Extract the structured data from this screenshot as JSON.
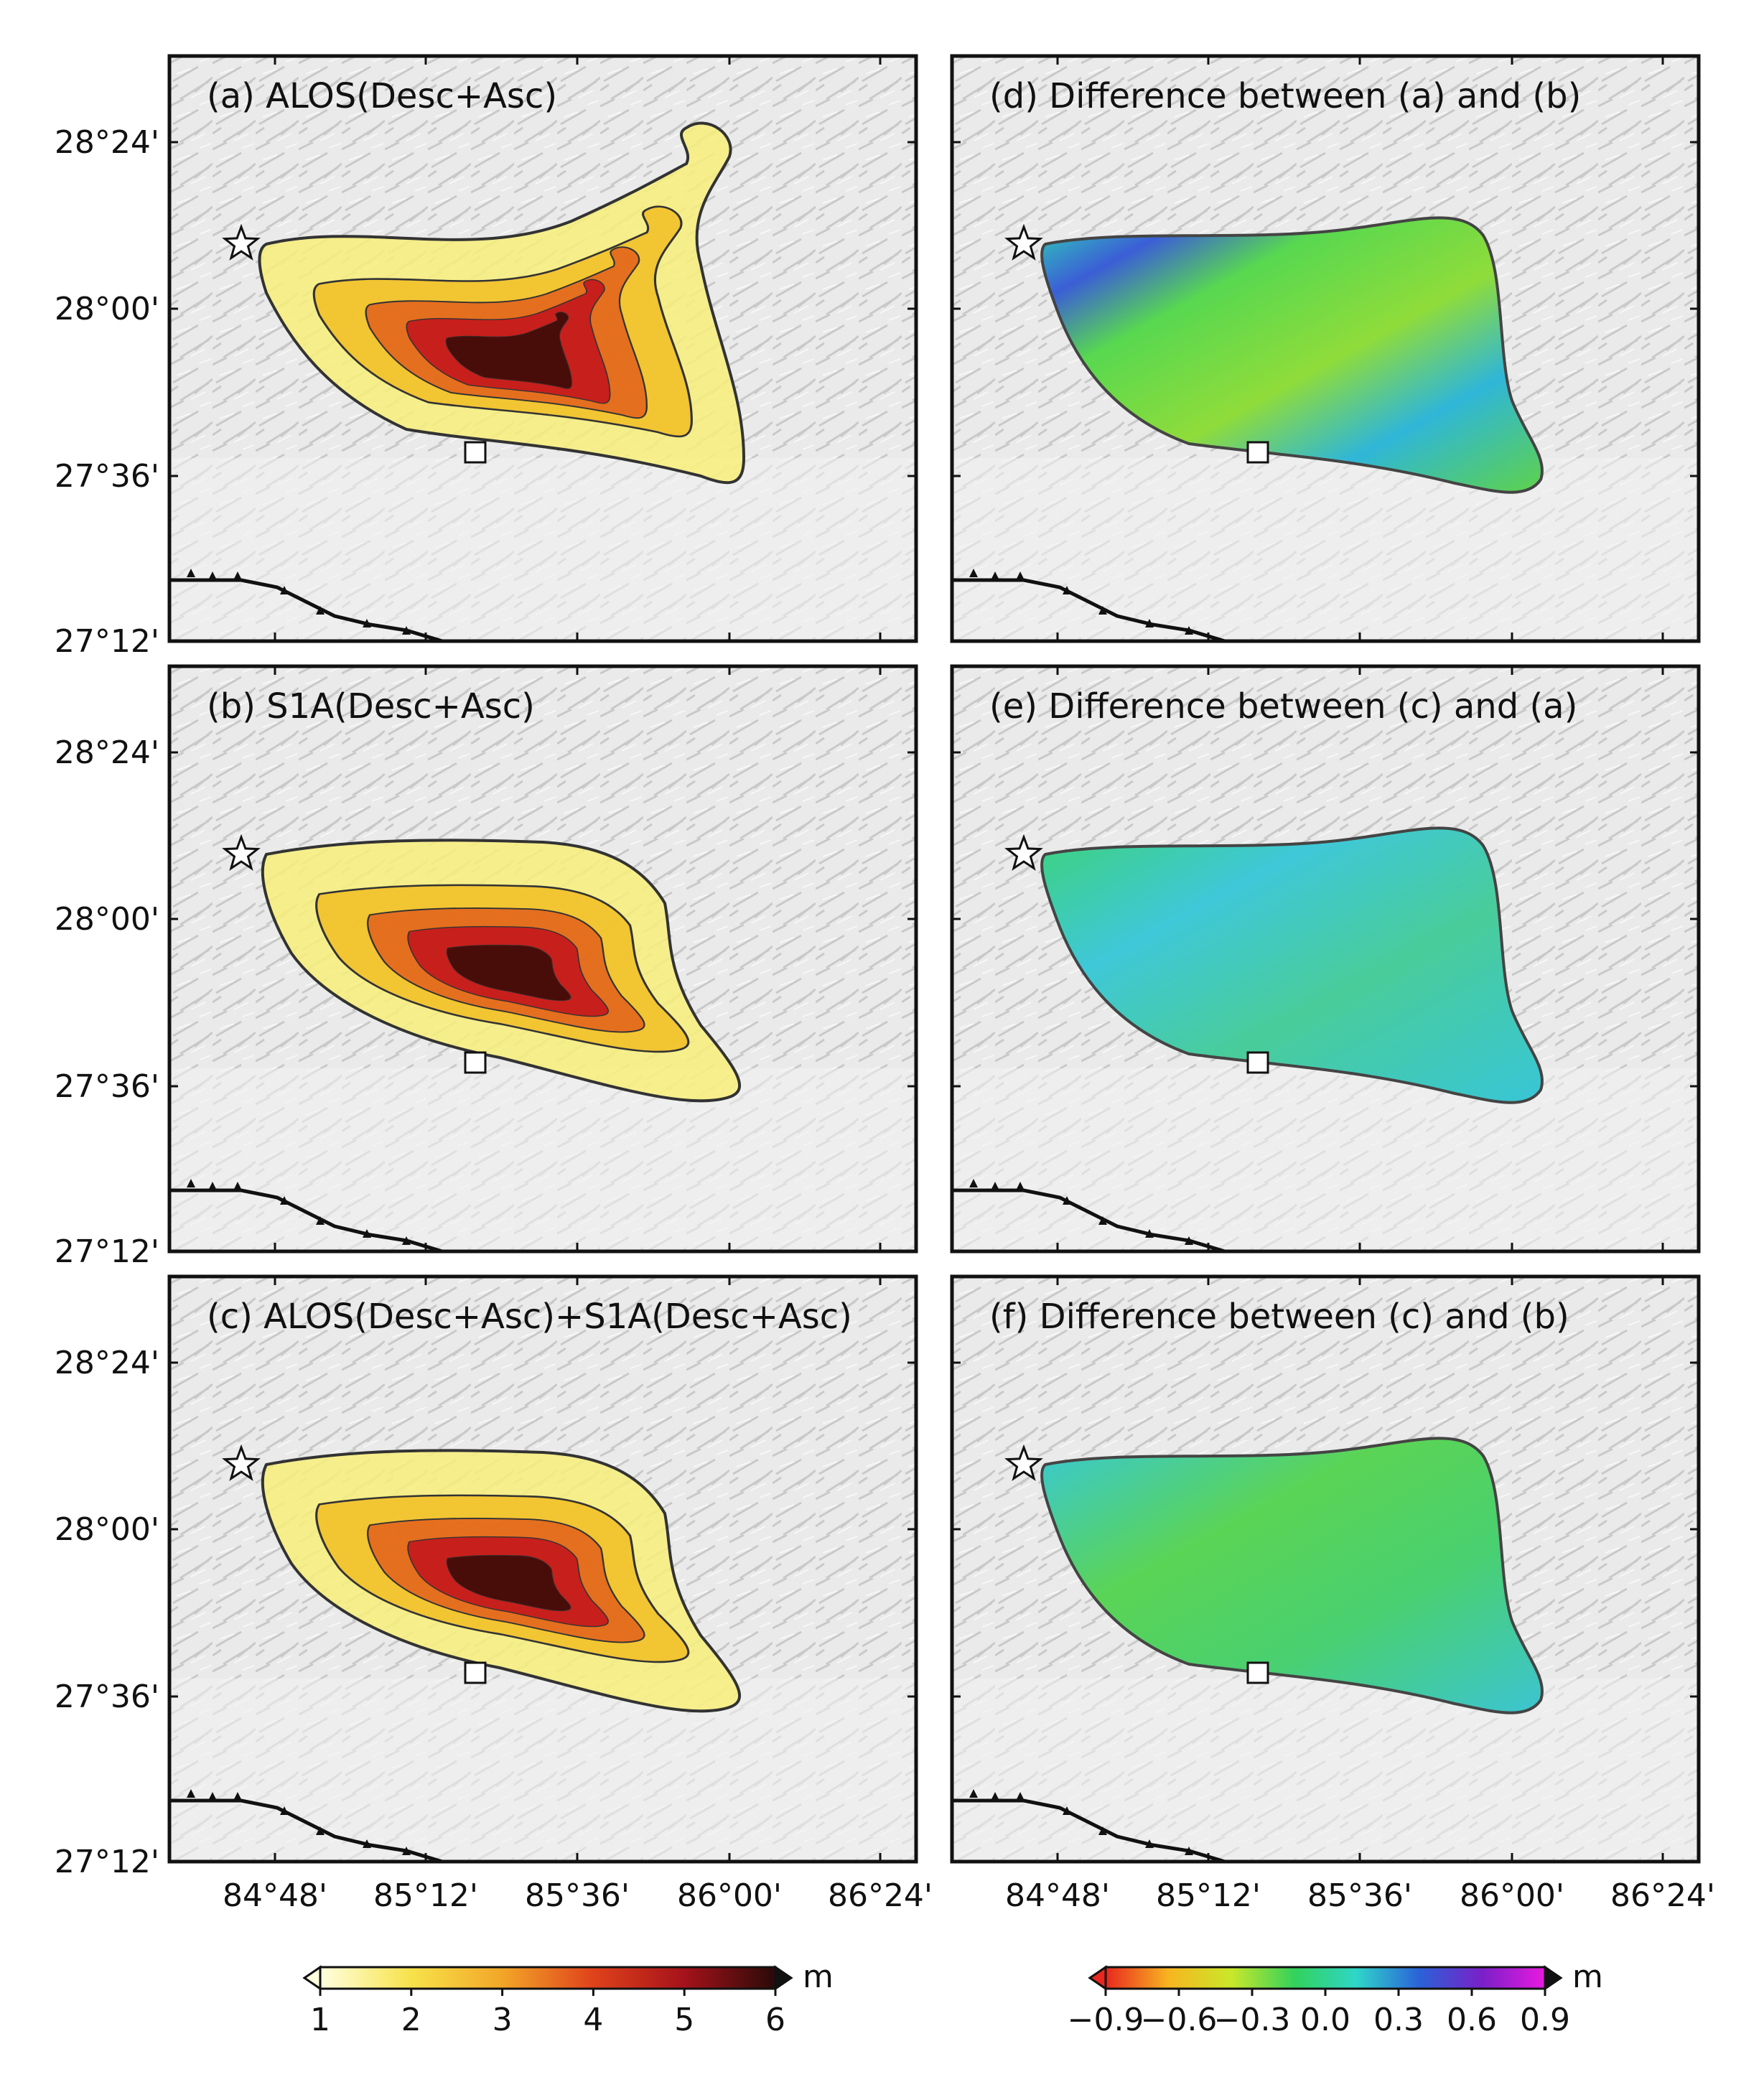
{
  "figure": {
    "lat_ticks": [
      "28°24'",
      "28°00'",
      "27°36'",
      "27°12'"
    ],
    "lon_ticks": [
      "84°48'",
      "85°12'",
      "85°36'",
      "86°00'",
      "86°24'"
    ]
  },
  "panels": [
    {
      "id": "a",
      "title": "(a) ALOS(Desc+Asc)",
      "kind": "displacement"
    },
    {
      "id": "d",
      "title": "(d) Difference between (a) and (b)",
      "kind": "difference"
    },
    {
      "id": "b",
      "title": "(b) S1A(Desc+Asc)",
      "kind": "displacement"
    },
    {
      "id": "e",
      "title": "(e) Difference between (c) and (a)",
      "kind": "difference"
    },
    {
      "id": "c",
      "title": "(c) ALOS(Desc+Asc)+S1A(Desc+Asc)",
      "kind": "displacement"
    },
    {
      "id": "f",
      "title": "(f) Difference between (c) and (b)",
      "kind": "difference"
    }
  ],
  "colorbars": {
    "displacement": {
      "ticks": [
        "1",
        "2",
        "3",
        "4",
        "5",
        "6"
      ],
      "unit": "m",
      "colors": [
        "#ffffe0",
        "#f7e24a",
        "#f2a628",
        "#e0421b",
        "#a5121a",
        "#2a0a08"
      ]
    },
    "difference": {
      "ticks": [
        "−0.9",
        "−0.6",
        "−0.3",
        "0.0",
        "0.3",
        "0.6",
        "0.9"
      ],
      "unit": "m",
      "colors": [
        "#e8281e",
        "#f7b520",
        "#c9e82a",
        "#33d25a",
        "#2fd6c8",
        "#2a62d8",
        "#7a20c8",
        "#e81ae0"
      ]
    }
  },
  "markers": {
    "epicenter": "star-icon",
    "station": "square-icon"
  }
}
